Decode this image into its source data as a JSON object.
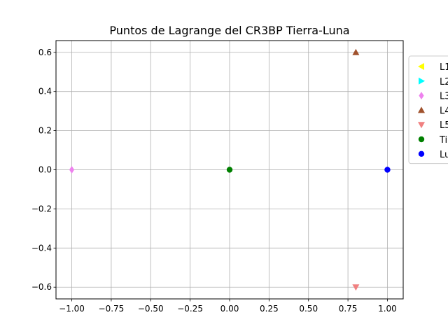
{
  "chart_data": {
    "type": "scatter",
    "title": "Puntos de Lagrange del CR3BP Tierra-Luna",
    "xlabel": "",
    "ylabel": "",
    "xlim": [
      -1.1,
      1.1
    ],
    "ylim": [
      -0.66,
      0.66
    ],
    "xticks": [
      -1.0,
      -0.75,
      -0.5,
      -0.25,
      0.0,
      0.25,
      0.5,
      0.75,
      1.0
    ],
    "xtick_labels": [
      "−1.00",
      "−0.75",
      "−0.50",
      "−0.25",
      "0.00",
      "0.25",
      "0.50",
      "0.75",
      "1.00"
    ],
    "yticks": [
      -0.6,
      -0.4,
      -0.2,
      0.0,
      0.2,
      0.4,
      0.6
    ],
    "ytick_labels": [
      "−0.6",
      "−0.4",
      "−0.2",
      "0.0",
      "0.2",
      "0.4",
      "0.6"
    ],
    "grid": true,
    "legend_position": "outside-right",
    "series": [
      {
        "name": "L1",
        "marker": "triangle-left",
        "color": "#ffff00",
        "points": []
      },
      {
        "name": "L2",
        "marker": "triangle-right",
        "color": "#00ffff",
        "points": []
      },
      {
        "name": "L3",
        "marker": "diamond",
        "color": "#ee82ee",
        "points": [
          [
            -1.0,
            0.0
          ]
        ]
      },
      {
        "name": "L4",
        "marker": "triangle-up",
        "color": "#a0522d",
        "points": [
          [
            0.8,
            0.6
          ]
        ]
      },
      {
        "name": "L5",
        "marker": "triangle-down",
        "color": "#f08080",
        "points": [
          [
            0.8,
            -0.6
          ]
        ]
      },
      {
        "name": "Ti",
        "marker": "circle",
        "color": "#008000",
        "points": [
          [
            0.0,
            0.0
          ]
        ]
      },
      {
        "name": "Lu",
        "marker": "circle",
        "color": "#0000ff",
        "points": [
          [
            1.0,
            0.0
          ]
        ]
      }
    ]
  }
}
